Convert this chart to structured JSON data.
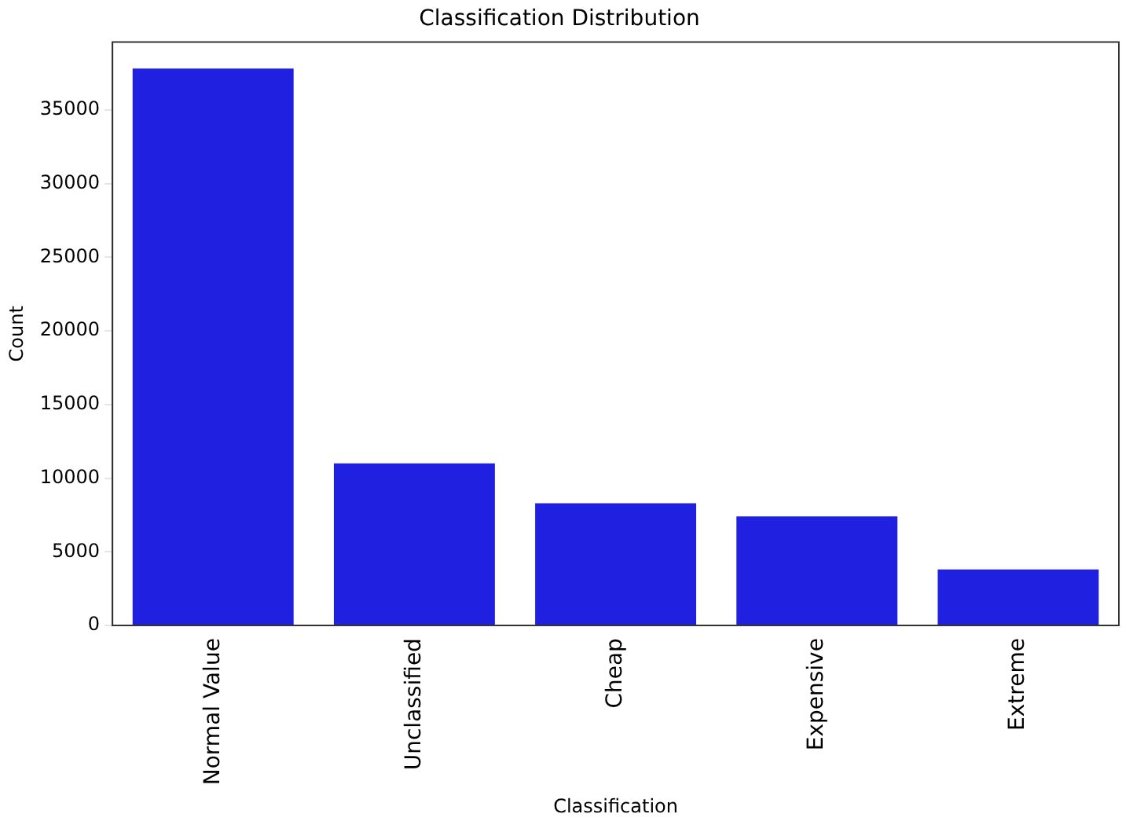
{
  "chart_data": {
    "type": "bar",
    "title": "Classification Distribution",
    "xlabel": "Classification",
    "ylabel": "Count",
    "categories": [
      "Normal Value",
      "Unclassified",
      "Cheap",
      "Expensive",
      "Extreme"
    ],
    "values": [
      37800,
      11000,
      8300,
      7400,
      3800
    ],
    "color": "#2020e0",
    "ylim": [
      0,
      39600
    ],
    "yticks": [
      0,
      5000,
      10000,
      15000,
      20000,
      25000,
      30000,
      35000
    ],
    "grid": false,
    "legend": false
  }
}
